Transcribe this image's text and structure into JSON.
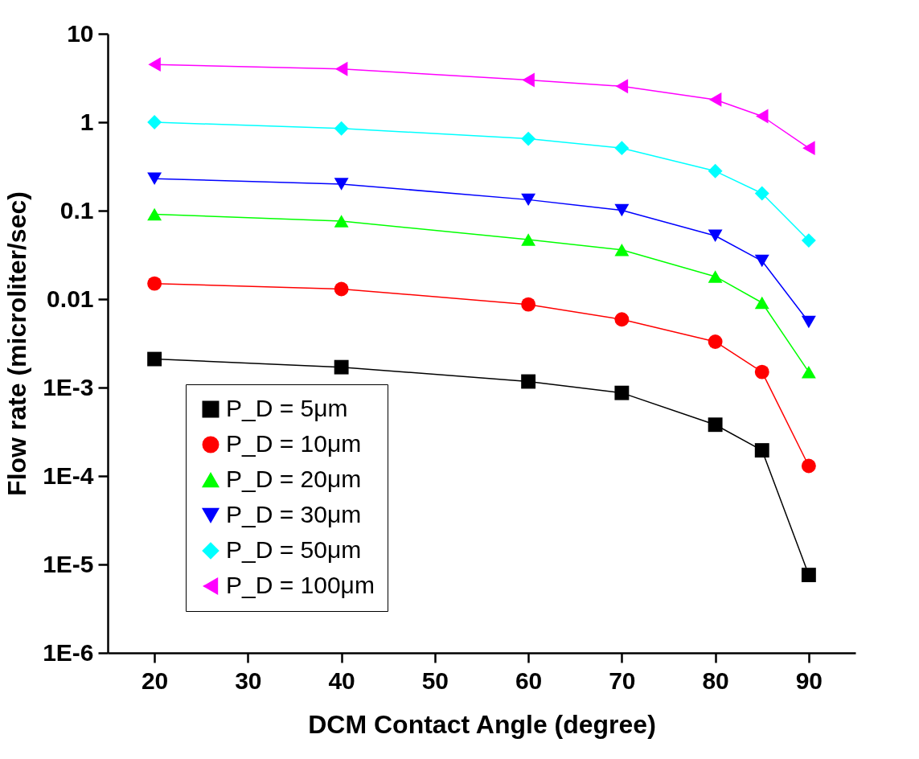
{
  "chart_data": {
    "type": "line",
    "xlabel": "DCM Contact Angle (degree)",
    "ylabel": "Flow rate (microliter/sec)",
    "x": [
      20,
      40,
      60,
      70,
      80,
      85,
      90
    ],
    "series": [
      {
        "name": "P_D = 5μm",
        "color": "#000000",
        "marker": "square",
        "values": [
          0.0021,
          0.0017,
          0.00117,
          0.00087,
          0.00038,
          0.000195,
          7.6e-06
        ]
      },
      {
        "name": "P_D = 10μm",
        "color": "#ff0000",
        "marker": "circle",
        "values": [
          0.015,
          0.013,
          0.0087,
          0.0059,
          0.0033,
          0.0015,
          0.00013
        ]
      },
      {
        "name": "P_D = 20μm",
        "color": "#00ff00",
        "marker": "triangle",
        "values": [
          0.091,
          0.076,
          0.047,
          0.036,
          0.018,
          0.0091,
          0.0015
        ]
      },
      {
        "name": "P_D = 30μm",
        "color": "#0000ff",
        "marker": "triangle-down",
        "values": [
          0.23,
          0.2,
          0.133,
          0.101,
          0.052,
          0.027,
          0.0055
        ]
      },
      {
        "name": "P_D = 50μm",
        "color": "#00ffff",
        "marker": "diamond",
        "values": [
          1.0,
          0.85,
          0.65,
          0.51,
          0.28,
          0.157,
          0.046
        ]
      },
      {
        "name": "P_D = 100μm",
        "color": "#ff00ff",
        "marker": "triangle-left",
        "values": [
          4.5,
          4.0,
          3.0,
          2.55,
          1.8,
          1.17,
          0.51
        ]
      }
    ],
    "xlim": [
      15,
      95
    ],
    "xticks": [
      20,
      30,
      40,
      50,
      60,
      70,
      80,
      90
    ],
    "ylim": [
      1e-06,
      10
    ],
    "yticks": [
      {
        "value": 1e-06,
        "label": "1E-6"
      },
      {
        "value": 1e-05,
        "label": "1E-5"
      },
      {
        "value": 0.0001,
        "label": "1E-4"
      },
      {
        "value": 0.001,
        "label": "1E-3"
      },
      0.01,
      0.1,
      1,
      10
    ],
    "log": "y",
    "grid": false,
    "legend": "bottom left",
    "line_style": "solid"
  }
}
